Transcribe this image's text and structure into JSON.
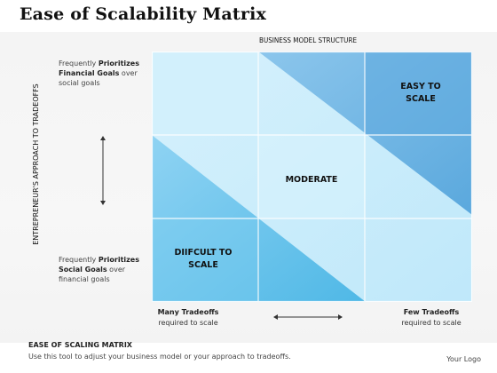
{
  "title": "Ease of Scalability Matrix",
  "top_axis_label": "BUSINESS MODEL STRUCTURE",
  "side_axis_label": "ENTREPRENEUR'S APPROACH TO TRADEOFFS",
  "top_left_note": {
    "line1_pre": "Frequently ",
    "line1_bold": "Prioritizes",
    "line2_bold": "Financial Goals",
    "line2_post": " over",
    "line3": "social goals"
  },
  "bottom_left_note": {
    "line1_pre": "Frequently ",
    "line1_bold": "Prioritizes",
    "line2_bold": "Social Goals",
    "line2_post": " over",
    "line3": "financial goals"
  },
  "bottom_left_label": {
    "line1": "Many Tradeoffs",
    "line2": "required to scale"
  },
  "bottom_right_label": {
    "line1": "Few Tradeoffs",
    "line2": "required to scale"
  },
  "regions": {
    "easy_line1": "EASY TO",
    "easy_line2": "SCALE",
    "moderate": "MODERATE",
    "difficult_line1": "DIIFCULT TO",
    "difficult_line2": "SCALE"
  },
  "footer": {
    "title": "EASE OF SCALING MATRIX",
    "description": "Use this tool to adjust your business model or your approach to tradeoffs.",
    "logo": "Your Logo"
  },
  "colors": {
    "light_blue": "#c9ecfb",
    "pale_blue": "#b3e4f8",
    "mid_blue": "#7fd0f3",
    "deep_blue": "#55b5e2",
    "top_right_blue": "#6ab0e0",
    "text": "#111111"
  }
}
